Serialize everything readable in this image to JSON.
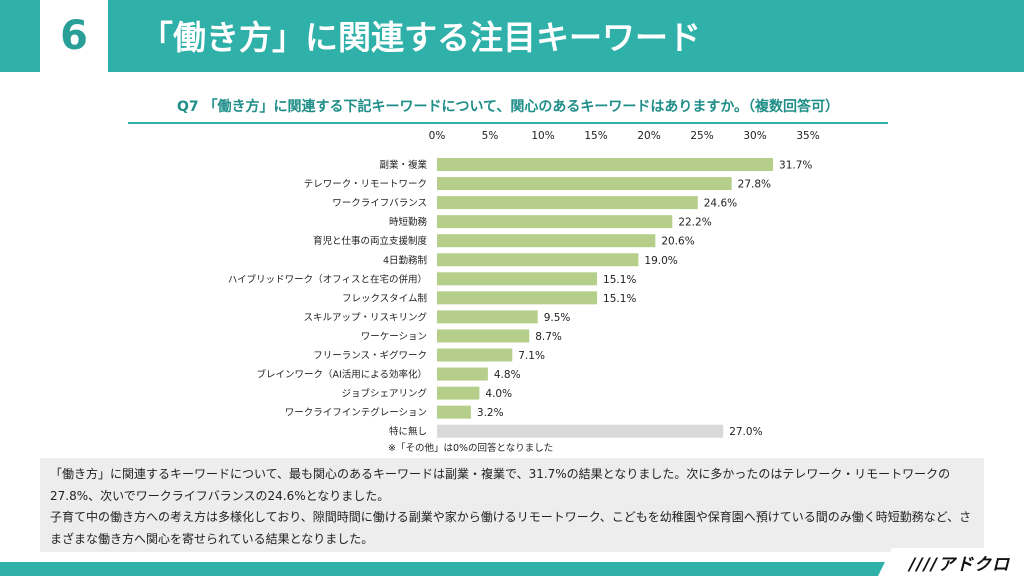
{
  "header": {
    "slide_number": "6",
    "title": "「働き方」に関連する注目キーワード"
  },
  "question": "Q7 「働き方」に関連する下記キーワードについて、関心のあるキーワードはありますか。（複数回答可）",
  "chart_data": {
    "type": "bar",
    "orientation": "horizontal",
    "title": "Q7 「働き方」に関連する下記キーワードについて、関心のあるキーワードはありますか。（複数回答可）",
    "x_ticks": [
      "0%",
      "5%",
      "10%",
      "15%",
      "20%",
      "25%",
      "30%",
      "35%"
    ],
    "xlim": [
      0,
      35
    ],
    "categories": [
      "副業・複業",
      "テレワーク・リモートワーク",
      "ワークライフバランス",
      "時短勤務",
      "育児と仕事の両立支援制度",
      "4日勤務制",
      "ハイブリッドワーク（オフィスと在宅の併用）",
      "フレックスタイム制",
      "スキルアップ・リスキリング",
      "ワーケーション",
      "フリーランス・ギグワーク",
      "ブレインワーク（AI活用による効率化）",
      "ジョブシェアリング",
      "ワークライフインテグレーション",
      "特に無し"
    ],
    "values": [
      31.7,
      27.8,
      24.6,
      22.2,
      20.6,
      19.0,
      15.1,
      15.1,
      9.5,
      8.7,
      7.1,
      4.8,
      4.0,
      3.2,
      27.0
    ],
    "value_labels": [
      "31.7%",
      "27.8%",
      "24.6%",
      "22.2%",
      "20.6%",
      "19.0%",
      "15.1%",
      "15.1%",
      "9.5%",
      "8.7%",
      "7.1%",
      "4.8%",
      "4.0%",
      "3.2%",
      "27.0%"
    ],
    "bar_color": "#b5cf8a",
    "none_bar_color": "#d9d9d9",
    "note": "※「その他」は0%の回答となりました"
  },
  "summary": {
    "paragraph1": "「働き方」に関連するキーワードについて、最も関心のあるキーワードは副業・複業で、31.7%の結果となりました。次に多かったのはテレワーク・リモートワークの27.8%、次いでワークライフバランスの24.6%となりました。",
    "paragraph2": "子育て中の働き方への考え方は多様化しており、隙間時間に働ける副業や家から働けるリモートワーク、こどもを幼稚園や保育園へ預けている間のみ働く時短勤務など、さまざまな働き方へ関心を寄せられている結果となりました。"
  },
  "logo": "////アドクロ",
  "colors": {
    "accent": "#2fb0a8",
    "accent_dark": "#1f8e88",
    "summary_bg": "#ededed"
  }
}
